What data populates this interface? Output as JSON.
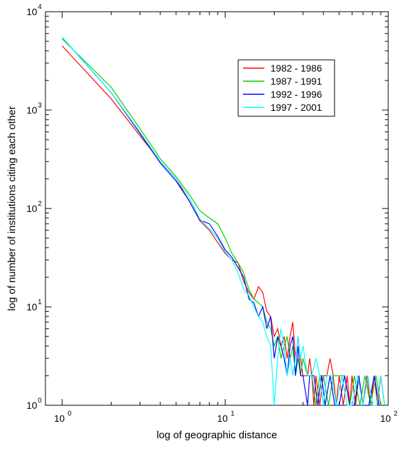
{
  "chart_data": {
    "type": "line",
    "title": "",
    "xlabel": "log of geographic distance",
    "ylabel": "log of number of institutions citing each other",
    "x_scale": "log",
    "y_scale": "log",
    "xlim": [
      0.79,
      100
    ],
    "ylim": [
      1,
      10000
    ],
    "x_ticks": [
      {
        "base": "10",
        "exp": "0",
        "value": 1
      },
      {
        "base": "10",
        "exp": "1",
        "value": 10
      },
      {
        "base": "10",
        "exp": "2",
        "value": 100
      }
    ],
    "y_ticks": [
      {
        "base": "10",
        "exp": "0",
        "value": 1
      },
      {
        "base": "10",
        "exp": "1",
        "value": 10
      },
      {
        "base": "10",
        "exp": "2",
        "value": 100
      },
      {
        "base": "10",
        "exp": "3",
        "value": 1000
      },
      {
        "base": "10",
        "exp": "4",
        "value": 10000
      }
    ],
    "grid": false,
    "legend_position": "top-right",
    "series": [
      {
        "name": "1982 - 1986",
        "color": "#ff0000",
        "points": [
          [
            1,
            4500
          ],
          [
            2,
            1300
          ],
          [
            3,
            550
          ],
          [
            4,
            300
          ],
          [
            5,
            200
          ],
          [
            6,
            120
          ],
          [
            7,
            75
          ],
          [
            8,
            60
          ],
          [
            9,
            45
          ],
          [
            10,
            35
          ],
          [
            11,
            30
          ],
          [
            12,
            28
          ],
          [
            13,
            18
          ],
          [
            14,
            14
          ],
          [
            15,
            12
          ],
          [
            16,
            16
          ],
          [
            17,
            14
          ],
          [
            18,
            9
          ],
          [
            19,
            8
          ],
          [
            20,
            5
          ],
          [
            21,
            6
          ],
          [
            22,
            4
          ],
          [
            23,
            5
          ],
          [
            24,
            3
          ],
          [
            25,
            5
          ],
          [
            26,
            7
          ],
          [
            27,
            3
          ],
          [
            28,
            5
          ],
          [
            29,
            3
          ],
          [
            30,
            2
          ],
          [
            32,
            2
          ],
          [
            33,
            3
          ],
          [
            34,
            2
          ],
          [
            35,
            1
          ],
          [
            36,
            2
          ],
          [
            38,
            1
          ],
          [
            40,
            2
          ],
          [
            42,
            2
          ],
          [
            44,
            3
          ],
          [
            46,
            2
          ],
          [
            48,
            1
          ],
          [
            50,
            2
          ],
          [
            53,
            1
          ],
          [
            56,
            2
          ],
          [
            58,
            1
          ],
          [
            60,
            2
          ],
          [
            63,
            1
          ],
          [
            66,
            2
          ],
          [
            70,
            1
          ],
          [
            74,
            2
          ],
          [
            78,
            1
          ],
          [
            82,
            2
          ],
          [
            86,
            1
          ],
          [
            90,
            2
          ],
          [
            95,
            1
          ]
        ]
      },
      {
        "name": "1987 - 1991",
        "color": "#00cc00",
        "points": [
          [
            1,
            5300
          ],
          [
            2,
            1700
          ],
          [
            3,
            650
          ],
          [
            4,
            320
          ],
          [
            5,
            210
          ],
          [
            6,
            140
          ],
          [
            7,
            95
          ],
          [
            8,
            80
          ],
          [
            9,
            70
          ],
          [
            10,
            50
          ],
          [
            11,
            35
          ],
          [
            12,
            28
          ],
          [
            13,
            22
          ],
          [
            14,
            15
          ],
          [
            15,
            12
          ],
          [
            16,
            11
          ],
          [
            17,
            10
          ],
          [
            18,
            7
          ],
          [
            19,
            6
          ],
          [
            20,
            4
          ],
          [
            21,
            5
          ],
          [
            22,
            3
          ],
          [
            23,
            4
          ],
          [
            24,
            5
          ],
          [
            25,
            3
          ],
          [
            26,
            4
          ],
          [
            27,
            2
          ],
          [
            28,
            3
          ],
          [
            29,
            2
          ],
          [
            30,
            3
          ],
          [
            32,
            2
          ],
          [
            34,
            2
          ],
          [
            36,
            1
          ],
          [
            38,
            2
          ],
          [
            40,
            2
          ],
          [
            43,
            1
          ],
          [
            46,
            2
          ],
          [
            50,
            2
          ],
          [
            54,
            2
          ],
          [
            58,
            1
          ],
          [
            62,
            2
          ],
          [
            67,
            1
          ],
          [
            72,
            2
          ],
          [
            78,
            1
          ],
          [
            84,
            2
          ],
          [
            90,
            1
          ]
        ]
      },
      {
        "name": "1992 - 1996",
        "color": "#0000ff",
        "points": [
          [
            1,
            5500
          ],
          [
            2,
            1500
          ],
          [
            3,
            580
          ],
          [
            4,
            290
          ],
          [
            5,
            190
          ],
          [
            6,
            120
          ],
          [
            7,
            76
          ],
          [
            8,
            70
          ],
          [
            9,
            52
          ],
          [
            10,
            38
          ],
          [
            11,
            32
          ],
          [
            12,
            25
          ],
          [
            13,
            20
          ],
          [
            14,
            12
          ],
          [
            15,
            11
          ],
          [
            16,
            8
          ],
          [
            17,
            10
          ],
          [
            18,
            6
          ],
          [
            19,
            8
          ],
          [
            20,
            3
          ],
          [
            21,
            5
          ],
          [
            22,
            4
          ],
          [
            23,
            3
          ],
          [
            24,
            2
          ],
          [
            25,
            4
          ],
          [
            26,
            5
          ],
          [
            27,
            2
          ],
          [
            28,
            4
          ],
          [
            29,
            2
          ],
          [
            30,
            2
          ],
          [
            32,
            1
          ],
          [
            33,
            2
          ],
          [
            35,
            2
          ],
          [
            37,
            1
          ],
          [
            39,
            2
          ],
          [
            41,
            1
          ],
          [
            44,
            2
          ],
          [
            47,
            1
          ],
          [
            50,
            1
          ],
          [
            54,
            2
          ],
          [
            58,
            1
          ],
          [
            62,
            1
          ],
          [
            66,
            2
          ],
          [
            70,
            1
          ],
          [
            76,
            1
          ],
          [
            82,
            2
          ],
          [
            88,
            1
          ]
        ]
      },
      {
        "name": "1997 - 2001",
        "color": "#00ffff",
        "points": [
          [
            1,
            5500
          ],
          [
            2,
            1500
          ],
          [
            3,
            600
          ],
          [
            4,
            300
          ],
          [
            5,
            200
          ],
          [
            6,
            130
          ],
          [
            7,
            78
          ],
          [
            8,
            62
          ],
          [
            9,
            50
          ],
          [
            10,
            36
          ],
          [
            11,
            30
          ],
          [
            12,
            22
          ],
          [
            13,
            15
          ],
          [
            14,
            13
          ],
          [
            15,
            10
          ],
          [
            16,
            8
          ],
          [
            17,
            7
          ],
          [
            18,
            5
          ],
          [
            19,
            4
          ],
          [
            20,
            1
          ],
          [
            21,
            3
          ],
          [
            22,
            6
          ],
          [
            23,
            4
          ],
          [
            24,
            2
          ],
          [
            25,
            3
          ],
          [
            26,
            2
          ],
          [
            27,
            3
          ],
          [
            28,
            5
          ],
          [
            29,
            3
          ],
          [
            30,
            4
          ],
          [
            32,
            2
          ],
          [
            34,
            2
          ],
          [
            36,
            3
          ],
          [
            38,
            2
          ],
          [
            40,
            1
          ],
          [
            42,
            2
          ],
          [
            45,
            2
          ],
          [
            48,
            1
          ],
          [
            52,
            2
          ],
          [
            56,
            1
          ],
          [
            60,
            1
          ],
          [
            65,
            2
          ],
          [
            70,
            1
          ],
          [
            75,
            2
          ],
          [
            80,
            1
          ],
          [
            85,
            1
          ],
          [
            90,
            2
          ],
          [
            95,
            1
          ]
        ]
      }
    ]
  }
}
